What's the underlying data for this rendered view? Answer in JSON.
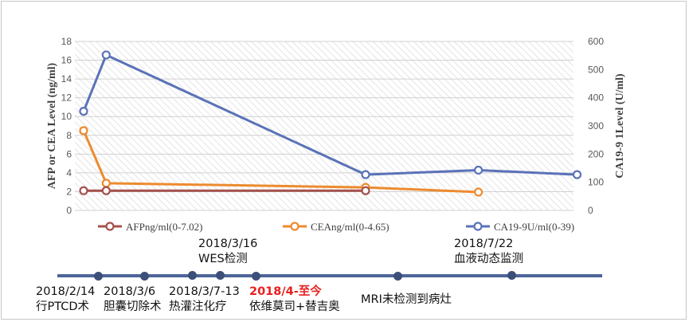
{
  "chart_data": {
    "type": "line",
    "x": [
      "2018/2/14",
      "2018/3/6",
      "2018/7/22",
      "MRI"
    ],
    "ylabel_left": "AFP or CEA Level (ng/ml)",
    "ylabel_right": "CA19-9 1Level (U/ml)",
    "ylim_left": [
      0,
      18
    ],
    "yticks_left": [
      "0",
      "2",
      "4",
      "6",
      "8",
      "10",
      "12",
      "14",
      "16",
      "18"
    ],
    "ylim_right": [
      0,
      600
    ],
    "yticks_right": [
      "0",
      "100",
      "200",
      "300",
      "400",
      "500",
      "600"
    ],
    "grid": true,
    "legend_position": "bottom",
    "series": [
      {
        "name": "AFPng/ml(0-7.02)",
        "axis": "left",
        "color": "#a5514c",
        "points": [
          [
            0,
            2.1
          ],
          [
            0.08,
            2.1
          ],
          [
            1.0,
            2.1
          ]
        ]
      },
      {
        "name": "CEAng/ml(0-4.65)",
        "axis": "left",
        "color": "#ed8b2f",
        "points": [
          [
            0,
            8.5
          ],
          [
            0.08,
            2.9
          ],
          [
            1.0,
            2.45
          ],
          [
            1.4,
            1.95
          ]
        ]
      },
      {
        "name": "CA19-9U/ml(0-39)",
        "axis": "right",
        "color": "#5a72b8",
        "points": [
          [
            0,
            352
          ],
          [
            0.08,
            552
          ],
          [
            1.0,
            127
          ],
          [
            1.4,
            143
          ],
          [
            1.75,
            127
          ]
        ]
      }
    ]
  },
  "timeline": {
    "color": "#4d6599",
    "dot_color": "#3c4f78",
    "events": [
      {
        "date": "2018/2/14",
        "label": "行PTCD术"
      },
      {
        "date": "2018/3/6",
        "label": "胆囊切除术"
      },
      {
        "date": "2018/3/7-13",
        "label": "热灌注化疗"
      },
      {
        "date": "2018/3/16",
        "label": "WES检测"
      },
      {
        "date": "2018/4-至今",
        "label": "依维莫司+替吉奥"
      },
      {
        "date": "",
        "label": "MRI未检测到病灶"
      },
      {
        "date": "2018/7/22",
        "label": "血液动态监测"
      }
    ]
  }
}
